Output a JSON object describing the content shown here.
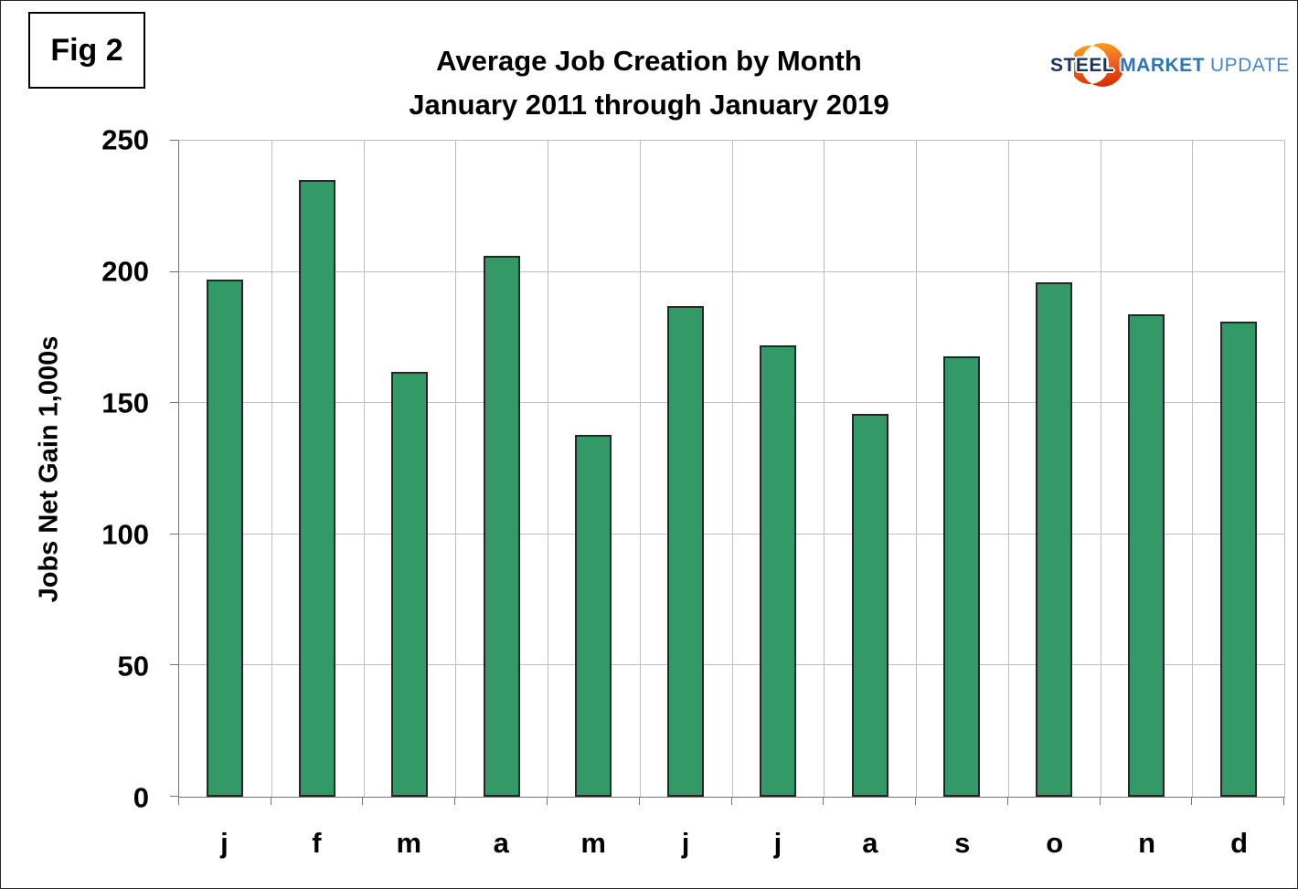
{
  "fig_label": "Fig 2",
  "logo": {
    "steel": "STEEL",
    "market": "MARKET",
    "update": "UPDATE",
    "icon": "crescent-swoosh-icon",
    "colors": {
      "steel": "#17365D",
      "market": "#2E74B5",
      "update": "#4A86C8",
      "crescent_top": "#F9A51A",
      "crescent_mid": "#F0641E",
      "crescent_bottom": "#D92D00"
    }
  },
  "chart_data": {
    "type": "bar",
    "title": "Average Job Creation by Month",
    "subtitle": "January 2011 through January 2019",
    "ylabel": "Jobs Net Gain 1,000s",
    "xlabel": "",
    "categories": [
      "j",
      "f",
      "m",
      "a",
      "m",
      "j",
      "j",
      "a",
      "s",
      "o",
      "n",
      "d"
    ],
    "values": [
      197,
      235,
      162,
      206,
      138,
      187,
      172,
      146,
      168,
      196,
      184,
      181
    ],
    "ylim": [
      0,
      250
    ],
    "yticks": [
      0,
      50,
      100,
      150,
      200,
      250
    ],
    "grid": true,
    "legend_position": "none",
    "bar_color": "#339966",
    "bar_border_color": "#262626",
    "gridline_color": "#BFBFBF",
    "axis_color": "#737373"
  }
}
